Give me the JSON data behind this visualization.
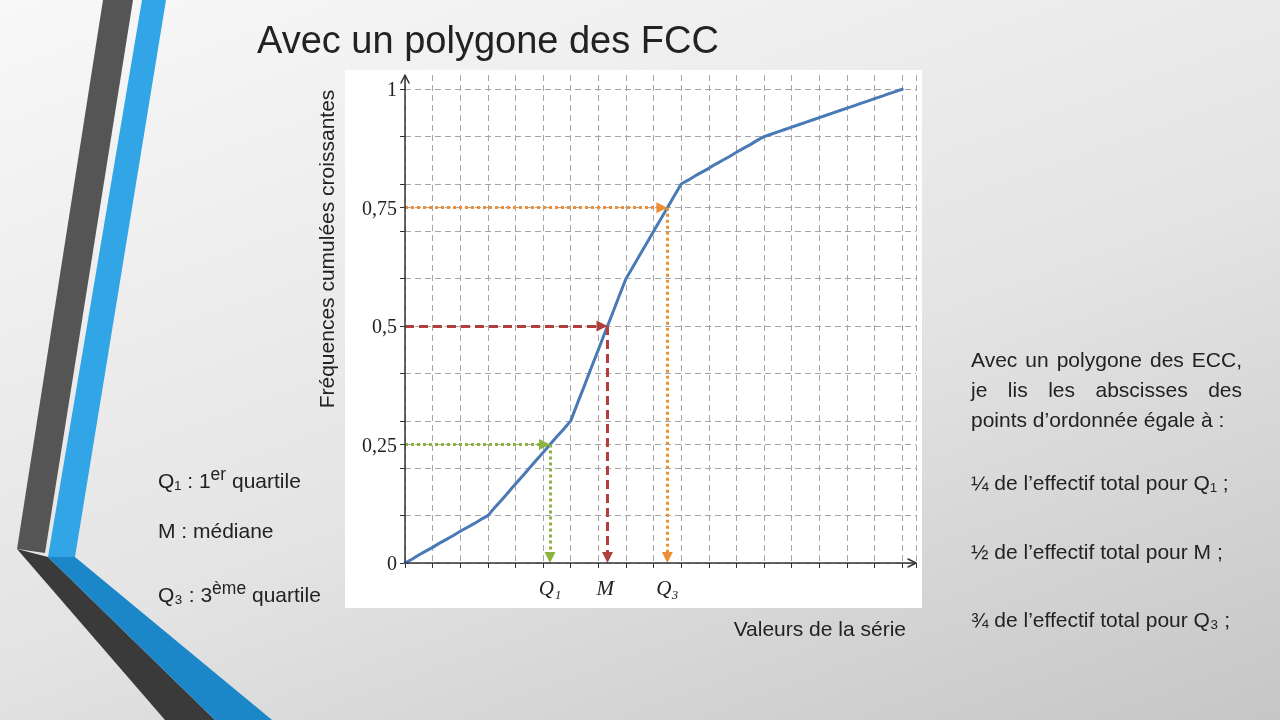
{
  "chart_data": {
    "type": "line",
    "title": "Avec un polygone des FCC",
    "xlabel": "Valeurs de la série",
    "ylabel": "Fréquences cumulées croissantes",
    "annotations": [
      "Q₁ : 1$^{er}$ quartile",
      "M : médiane",
      "Q₃ : 3$^{ème}$ quartile",
      "Avec un polygone des ECC, je lis les abscisses des points d’ordonnée égale à :",
      "¼ de l’effectif total pour Q₁ ;",
      "½ de l’effectif total pour M ;",
      "¾ de l’effectif total pour Q₃ ;"
    ],
    "categories": [
      null,
      null,
      null,
      null,
      null,
      null,
      null,
      null,
      null,
      null,
      null,
      null,
      null,
      null,
      null,
      null,
      null,
      null,
      null,
      null,
      null,
      "Q₁",
      null,
      null,
      null,
      null,
      null,
      null,
      null,
      "M",
      null,
      null,
      null,
      null,
      null,
      null,
      null,
      null,
      "Q₃",
      null,
      null,
      null,
      null,
      null,
      null,
      null,
      null,
      null,
      null,
      null,
      null,
      null,
      null,
      null,
      null,
      null,
      null,
      null,
      null,
      null,
      null,
      null,
      null,
      null,
      null,
      null,
      null,
      null,
      null,
      null,
      null,
      null,
      null,
      null,
      null
    ],
    "series": [
      {
        "color": "#4a7ab5",
        "values": [
          0,
          0.008,
          0.017,
          0.025,
          0.033,
          0.042,
          0.05,
          0.058,
          0.067,
          0.075,
          0.083,
          0.092,
          0.1,
          0.117,
          0.133,
          0.15,
          0.167,
          0.183,
          0.2,
          0.217,
          0.233,
          0.25,
          0.267,
          0.283,
          0.3,
          0.338,
          0.375,
          0.413,
          0.45,
          0.488,
          0.525,
          0.563,
          0.6,
          0.625,
          0.65,
          0.675,
          0.7,
          0.725,
          0.75,
          0.775,
          0.8,
          0.808,
          0.817,
          0.825,
          0.833,
          0.842,
          0.85,
          0.858,
          0.867,
          0.875,
          0.883,
          0.892,
          0.9,
          0.905,
          0.91,
          0.915,
          0.92,
          0.925,
          0.93,
          0.935,
          0.94,
          0.945,
          0.95,
          0.955,
          0.96,
          0.965,
          0.97,
          0.975,
          0.98,
          0.985,
          0.99,
          0.995,
          1,
          null,
          null
        ]
      }
    ],
    "ref_lines": [
      {
        "axis": "y",
        "value": 0.25,
        "color": "#8db33f",
        "line_style": "dotted"
      },
      {
        "axis": "y",
        "value": 0.5,
        "color": "#b0403d",
        "line_style": "dashed"
      },
      {
        "axis": "y",
        "value": 0.75,
        "color": "#ed8f34",
        "line_style": "dotted"
      }
    ],
    "ylim": [
      0,
      1.03
    ],
    "yticks": [
      0,
      {
        "value": 0.1,
        "label": null
      },
      {
        "value": 0.2,
        "label": null
      },
      {
        "value": 0.25,
        "label": "0,25"
      },
      {
        "value": 0.3,
        "label": null
      },
      {
        "value": 0.4,
        "label": null
      },
      {
        "value": 0.5,
        "label": "0,5"
      },
      {
        "value": 0.6,
        "label": null
      },
      {
        "value": 0.7,
        "label": null
      },
      {
        "value": 0.75,
        "label": "0,75"
      },
      {
        "value": 0.8,
        "label": null
      },
      {
        "value": 0.9,
        "label": null
      },
      1
    ],
    "grid": true
  }
}
